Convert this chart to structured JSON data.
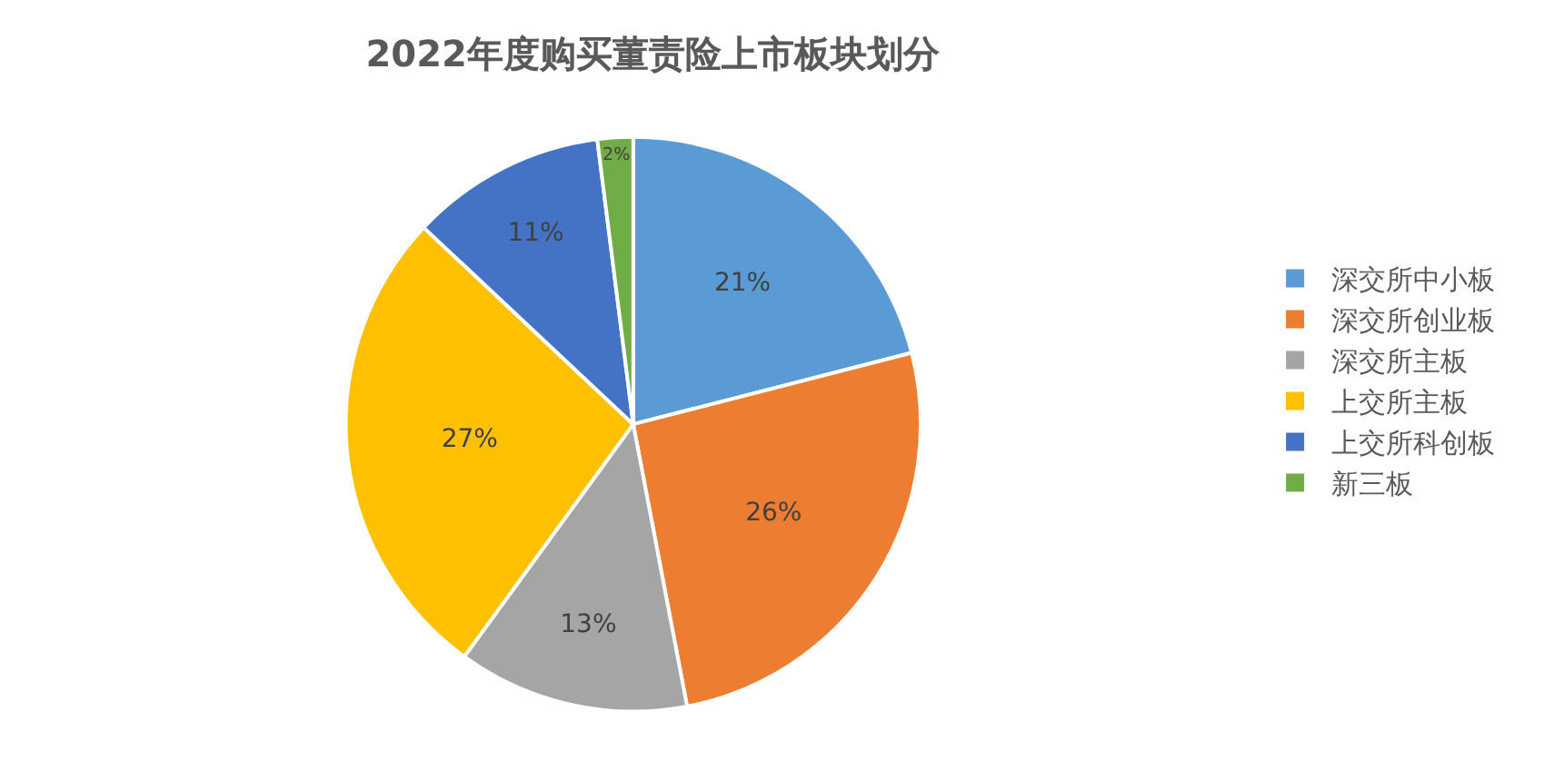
{
  "chart_data": {
    "type": "pie",
    "title": "2022年度购买董责险上市板块划分",
    "categories": [
      "深交所中小板",
      "深交所创业板",
      "深交所主板",
      "上交所主板",
      "上交所科创板",
      "新三板"
    ],
    "values": [
      21,
      26,
      13,
      27,
      11,
      2
    ],
    "colors": [
      "#5b9bd5",
      "#ed7d31",
      "#a5a5a5",
      "#ffc000",
      "#4472c4",
      "#70ad47"
    ],
    "value_labels": [
      "21%",
      "26%",
      "13%",
      "27%",
      "11%",
      "2%"
    ],
    "legend": "right"
  }
}
